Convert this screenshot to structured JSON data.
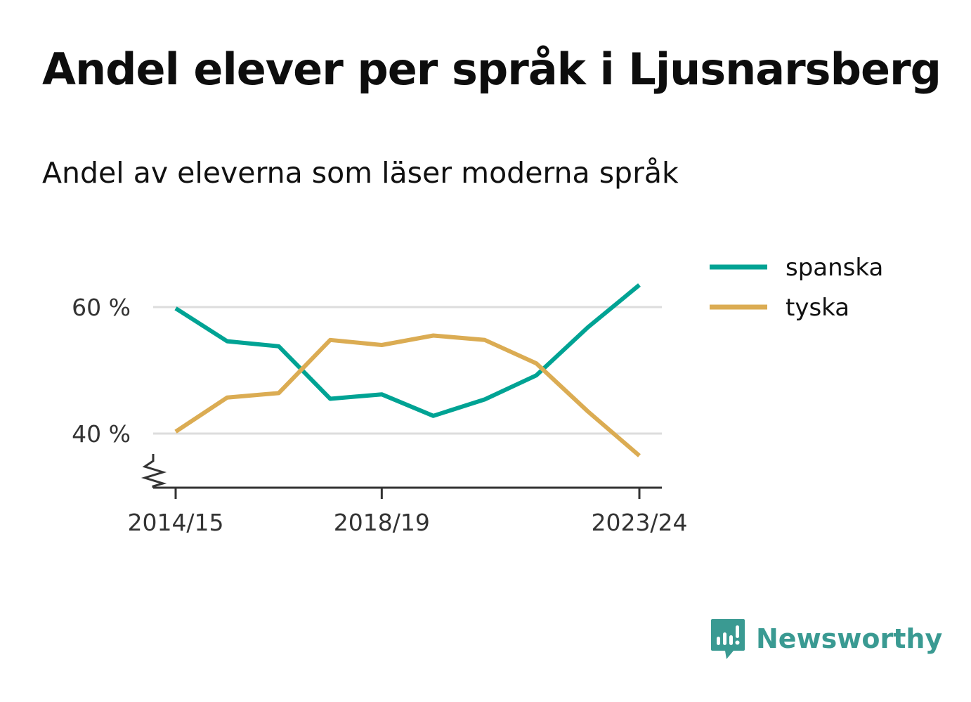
{
  "title": "Andel elever per språk i Ljusnarsberg",
  "subtitle": "Andel av eleverna som läser moderna språk",
  "brand": {
    "name": "Newsworthy",
    "icon": "newsworthy-logo-icon",
    "color": "#3a9a92"
  },
  "chart_data": {
    "type": "line",
    "x": [
      "2014/15",
      "2015/16",
      "2016/17",
      "2017/18",
      "2018/19",
      "2019/20",
      "2020/21",
      "2021/22",
      "2022/23",
      "2023/24"
    ],
    "x_tick_labels": [
      "2014/15",
      "2018/19",
      "2023/24"
    ],
    "y_ticks": [
      40,
      60
    ],
    "y_tick_labels": [
      "40 %",
      "60 %"
    ],
    "ylim": [
      32,
      69
    ],
    "axis_break": true,
    "grid": "horizontal",
    "legend_position": "right",
    "series": [
      {
        "name": "spanska",
        "color": "#00a394",
        "values": [
          59.8,
          54.6,
          53.8,
          45.5,
          46.2,
          42.8,
          45.4,
          49.2,
          56.8,
          63.5
        ]
      },
      {
        "name": "tyska",
        "color": "#dbac53",
        "values": [
          40.3,
          45.7,
          46.4,
          54.8,
          54.0,
          55.5,
          54.8,
          51.1,
          43.5,
          36.5
        ]
      }
    ]
  }
}
